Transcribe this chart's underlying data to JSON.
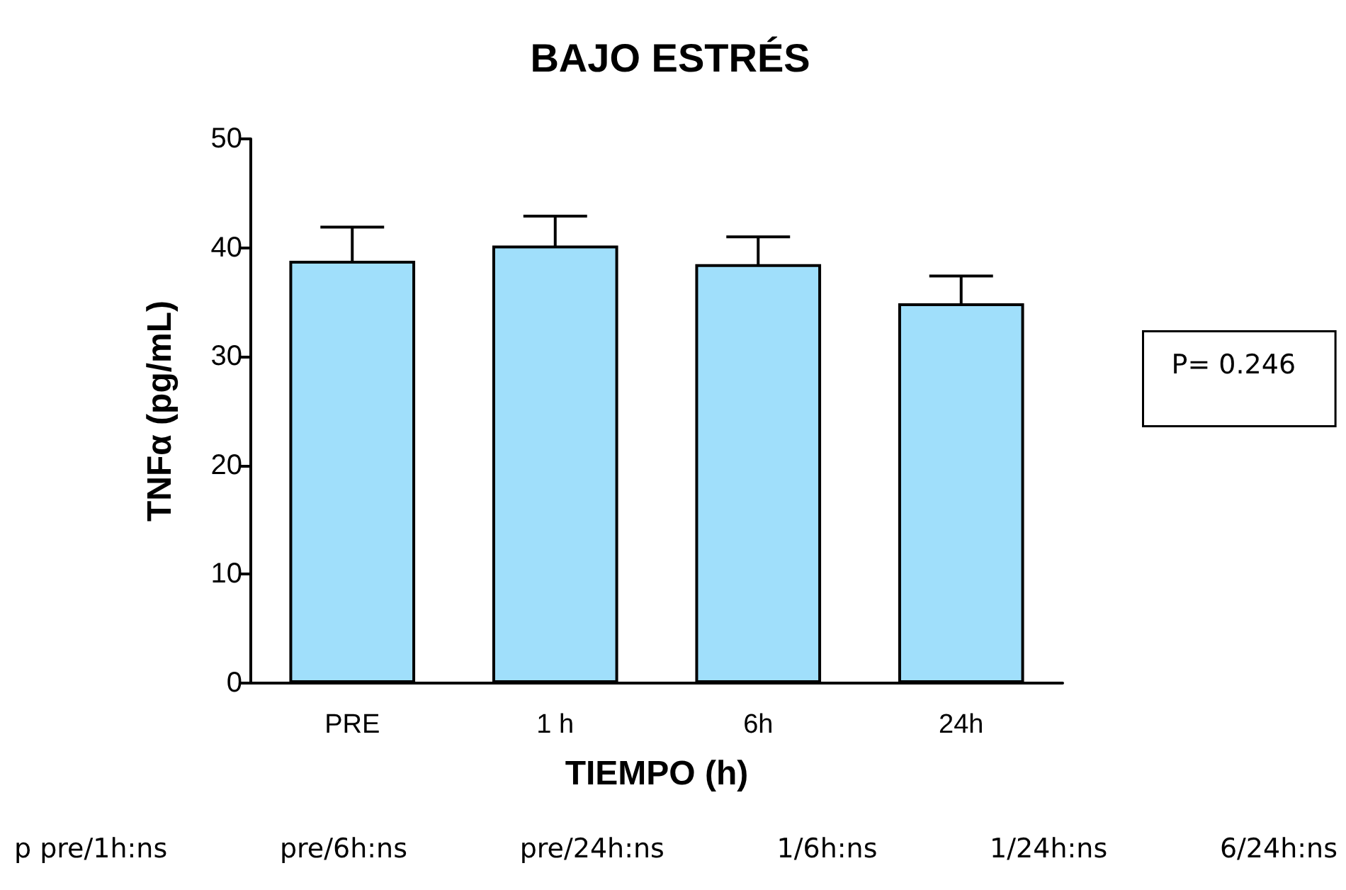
{
  "chart_data": {
    "type": "bar",
    "title": "BAJO ESTRÉS",
    "xlabel": "TIEMPO (h)",
    "ylabel": "TNFα (pg/mL)",
    "categories": [
      "PRE",
      "1 h",
      "6h",
      "24h"
    ],
    "values": [
      38.8,
      40.2,
      38.5,
      34.9
    ],
    "errors": [
      3.1,
      2.7,
      2.5,
      2.5
    ],
    "color": "#a0dffb",
    "ylim": [
      0,
      50
    ],
    "yticks": [
      0,
      10,
      20,
      30,
      40,
      50
    ],
    "grid": false,
    "annotations": [
      "P= 0.246",
      "p pre/1h:ns",
      "pre/6h:ns",
      "pre/24h:ns",
      "1/6h:ns",
      "1/24h:ns",
      "6/24h:ns"
    ]
  }
}
